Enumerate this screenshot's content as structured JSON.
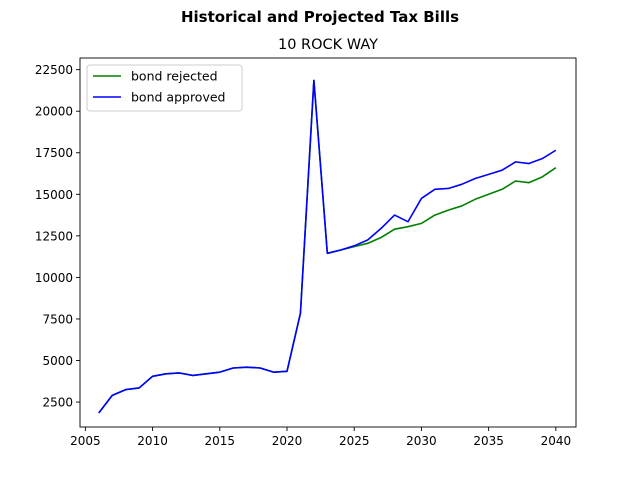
{
  "chart_data": {
    "type": "line",
    "title": "Historical and Projected Tax Bills",
    "subtitle": "10 ROCK WAY",
    "xlabel": "",
    "ylabel": "",
    "xlim": [
      2004.6,
      2041.5
    ],
    "ylim": [
      1000,
      23200
    ],
    "xticks": [
      2005,
      2010,
      2015,
      2020,
      2025,
      2030,
      2035,
      2040
    ],
    "yticks": [
      2500,
      5000,
      7500,
      10000,
      12500,
      15000,
      17500,
      20000,
      22500
    ],
    "grid": false,
    "legend_position": "top-left",
    "series": [
      {
        "name": "bond rejected",
        "color": "#008000",
        "x": [
          2006,
          2007,
          2008,
          2009,
          2010,
          2011,
          2012,
          2013,
          2014,
          2015,
          2016,
          2017,
          2018,
          2019,
          2020,
          2021,
          2022,
          2023,
          2024,
          2025,
          2026,
          2027,
          2028,
          2029,
          2030,
          2031,
          2032,
          2033,
          2034,
          2035,
          2036,
          2037,
          2038,
          2039,
          2040
        ],
        "y": [
          1850,
          2900,
          3250,
          3350,
          4050,
          4200,
          4250,
          4100,
          4200,
          4300,
          4550,
          4600,
          4550,
          4300,
          4350,
          7850,
          21850,
          11450,
          11650,
          11850,
          12050,
          12400,
          12900,
          13050,
          13250,
          13750,
          14050,
          14300,
          14700,
          15000,
          15300,
          15800,
          15700,
          16050,
          16600
        ]
      },
      {
        "name": "bond approved",
        "color": "#0000ff",
        "x": [
          2006,
          2007,
          2008,
          2009,
          2010,
          2011,
          2012,
          2013,
          2014,
          2015,
          2016,
          2017,
          2018,
          2019,
          2020,
          2021,
          2022,
          2023,
          2024,
          2025,
          2026,
          2027,
          2028,
          2029,
          2030,
          2031,
          2032,
          2033,
          2034,
          2035,
          2036,
          2037,
          2038,
          2039,
          2040
        ],
        "y": [
          1850,
          2900,
          3250,
          3350,
          4050,
          4200,
          4250,
          4100,
          4200,
          4300,
          4550,
          4600,
          4550,
          4300,
          4350,
          7850,
          21850,
          11450,
          11650,
          11900,
          12250,
          12950,
          13750,
          13350,
          14750,
          15300,
          15350,
          15600,
          15950,
          16200,
          16450,
          16950,
          16850,
          17150,
          17650
        ]
      }
    ]
  }
}
